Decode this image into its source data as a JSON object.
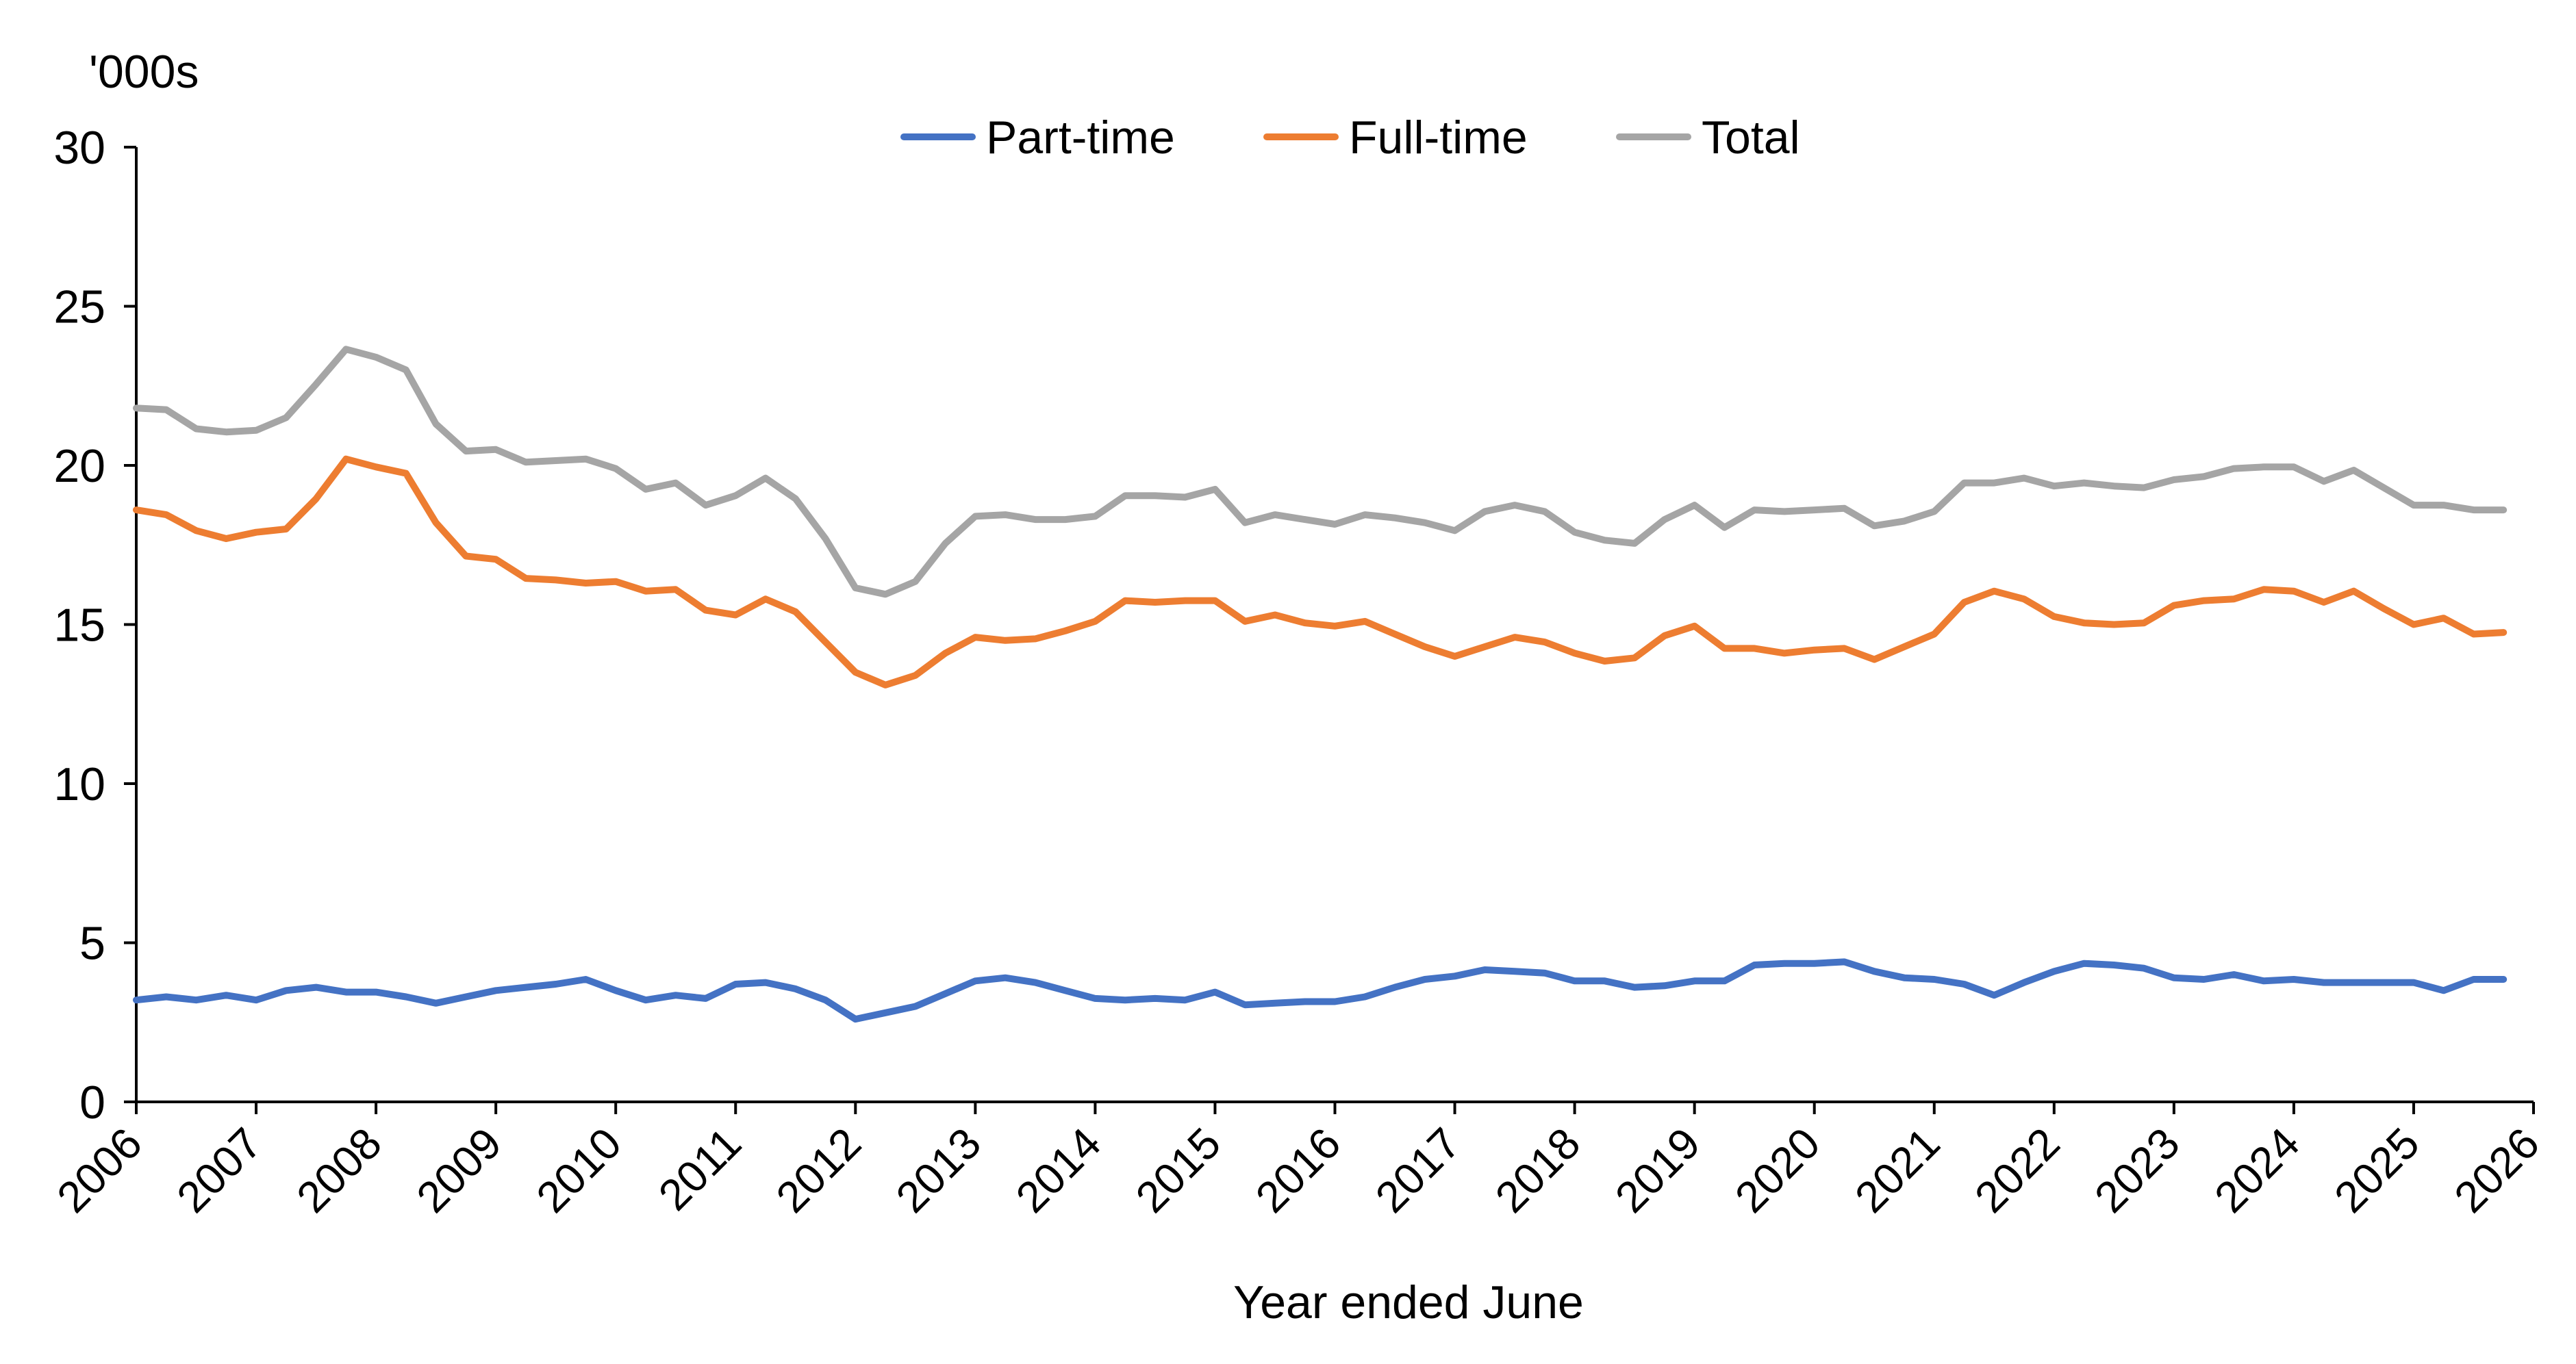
{
  "chart_data": {
    "type": "line",
    "title": "",
    "ylabel": "'000s",
    "xlabel": "Year ended June",
    "legend_position": "top-center",
    "ylim": [
      0,
      30
    ],
    "xlim": [
      2006,
      2026
    ],
    "yticks": [
      "0",
      "5",
      "10",
      "15",
      "20",
      "25",
      "30"
    ],
    "xticks": [
      "2006",
      "2007",
      "2008",
      "2009",
      "2010",
      "2011",
      "2012",
      "2013",
      "2014",
      "2015",
      "2016",
      "2017",
      "2018",
      "2019",
      "2020",
      "2021",
      "2022",
      "2023",
      "2024",
      "2025",
      "2026"
    ],
    "x": [
      2006.0,
      2006.25,
      2006.5,
      2006.75,
      2007.0,
      2007.25,
      2007.5,
      2007.75,
      2008.0,
      2008.25,
      2008.5,
      2008.75,
      2009.0,
      2009.25,
      2009.5,
      2009.75,
      2010.0,
      2010.25,
      2010.5,
      2010.75,
      2011.0,
      2011.25,
      2011.5,
      2011.75,
      2012.0,
      2012.25,
      2012.5,
      2012.75,
      2013.0,
      2013.25,
      2013.5,
      2013.75,
      2014.0,
      2014.25,
      2014.5,
      2014.75,
      2015.0,
      2015.25,
      2015.5,
      2015.75,
      2016.0,
      2016.25,
      2016.5,
      2016.75,
      2017.0,
      2017.25,
      2017.5,
      2017.75,
      2018.0,
      2018.25,
      2018.5,
      2018.75,
      2019.0,
      2019.25,
      2019.5,
      2019.75,
      2020.0,
      2020.25,
      2020.5,
      2020.75,
      2021.0,
      2021.25,
      2021.5,
      2021.75,
      2022.0,
      2022.25,
      2022.5,
      2022.75,
      2023.0,
      2023.25,
      2023.5,
      2023.75,
      2024.0,
      2024.25,
      2024.5,
      2024.75,
      2025.0,
      2025.25,
      2025.5,
      2025.75
    ],
    "series": [
      {
        "name": "Part-time",
        "color": "#4472C4",
        "values": [
          3.2,
          3.3,
          3.2,
          3.35,
          3.2,
          3.5,
          3.6,
          3.45,
          3.45,
          3.3,
          3.1,
          3.3,
          3.5,
          3.6,
          3.7,
          3.85,
          3.5,
          3.2,
          3.35,
          3.25,
          3.7,
          3.75,
          3.55,
          3.2,
          2.6,
          2.8,
          3.0,
          3.4,
          3.8,
          3.9,
          3.75,
          3.5,
          3.25,
          3.2,
          3.25,
          3.2,
          3.45,
          3.05,
          3.1,
          3.15,
          3.15,
          3.3,
          3.6,
          3.85,
          3.95,
          4.15,
          4.1,
          4.05,
          3.8,
          3.8,
          3.6,
          3.65,
          3.8,
          3.8,
          4.3,
          4.35,
          4.35,
          4.4,
          4.1,
          3.9,
          3.85,
          3.7,
          3.35,
          3.75,
          4.1,
          4.35,
          4.3,
          4.2,
          3.9,
          3.85,
          4.0,
          3.8,
          3.85,
          3.75,
          3.75,
          3.75,
          3.75,
          3.5,
          3.85,
          3.85
        ]
      },
      {
        "name": "Full-time",
        "color": "#ED7D31",
        "values": [
          18.6,
          18.45,
          17.95,
          17.7,
          17.9,
          18.0,
          18.95,
          20.2,
          19.95,
          19.75,
          18.2,
          17.15,
          17.05,
          16.45,
          16.4,
          16.3,
          16.35,
          16.05,
          16.1,
          15.45,
          15.3,
          15.8,
          15.4,
          14.45,
          13.5,
          13.1,
          13.4,
          14.1,
          14.6,
          14.5,
          14.55,
          14.8,
          15.1,
          15.75,
          15.7,
          15.75,
          15.75,
          15.1,
          15.3,
          15.05,
          14.95,
          15.1,
          14.7,
          14.3,
          14.0,
          14.3,
          14.6,
          14.45,
          14.1,
          13.85,
          13.95,
          14.65,
          14.95,
          14.25,
          14.25,
          14.1,
          14.2,
          14.25,
          13.9,
          14.3,
          14.7,
          15.7,
          16.05,
          15.8,
          15.25,
          15.05,
          15.0,
          15.05,
          15.6,
          15.75,
          15.8,
          16.1,
          16.05,
          15.7,
          16.05,
          15.5,
          15.0,
          15.2,
          14.7,
          14.75
        ]
      },
      {
        "name": "Total",
        "color": "#A5A5A5",
        "values": [
          21.8,
          21.75,
          21.15,
          21.05,
          21.1,
          21.5,
          22.55,
          23.65,
          23.4,
          23.0,
          21.3,
          20.45,
          20.5,
          20.1,
          20.15,
          20.2,
          19.9,
          19.25,
          19.45,
          18.75,
          19.05,
          19.6,
          18.95,
          17.7,
          16.15,
          15.95,
          16.35,
          17.55,
          18.4,
          18.45,
          18.3,
          18.3,
          18.4,
          19.05,
          19.05,
          19.0,
          19.25,
          18.2,
          18.45,
          18.3,
          18.15,
          18.45,
          18.35,
          18.2,
          17.95,
          18.55,
          18.75,
          18.55,
          17.9,
          17.65,
          17.55,
          18.3,
          18.75,
          18.05,
          18.6,
          18.55,
          18.6,
          18.65,
          18.1,
          18.25,
          18.55,
          19.45,
          19.45,
          19.6,
          19.35,
          19.45,
          19.35,
          19.3,
          19.55,
          19.65,
          19.9,
          19.95,
          19.95,
          19.5,
          19.85,
          19.3,
          18.75,
          18.75,
          18.6,
          18.6
        ]
      }
    ]
  }
}
